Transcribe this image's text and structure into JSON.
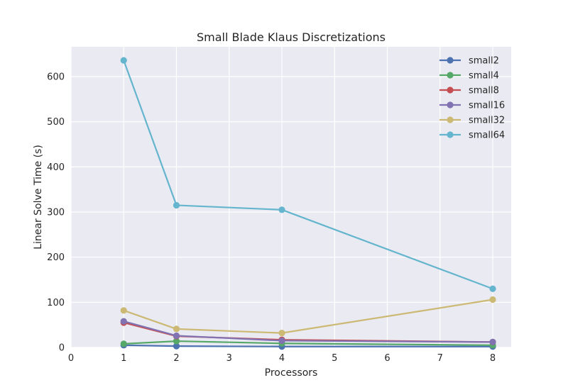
{
  "chart_data": {
    "type": "line",
    "title": "Small Blade Klaus Discretizations",
    "xlabel": "Processors",
    "ylabel": "Linear Solve Time (s)",
    "xlim": [
      0,
      8.35
    ],
    "ylim": [
      0,
      666
    ],
    "xticks": [
      0,
      1,
      2,
      3,
      4,
      5,
      6,
      7,
      8
    ],
    "yticks": [
      0,
      100,
      200,
      300,
      400,
      500,
      600
    ],
    "grid": true,
    "legend_position": "top-right",
    "x": [
      1,
      2,
      4,
      8
    ],
    "series": [
      {
        "name": "small2",
        "color": "#4c72b0",
        "values": [
          5,
          3,
          2,
          2
        ]
      },
      {
        "name": "small4",
        "color": "#55a868",
        "values": [
          8,
          14,
          9,
          5
        ]
      },
      {
        "name": "small8",
        "color": "#c44e52",
        "values": [
          55,
          25,
          17,
          12
        ]
      },
      {
        "name": "small16",
        "color": "#8172b2",
        "values": [
          58,
          26,
          15,
          12
        ]
      },
      {
        "name": "small32",
        "color": "#ccb974",
        "values": [
          82,
          41,
          32,
          106
        ]
      },
      {
        "name": "small64",
        "color": "#64b5cd",
        "values": [
          636,
          315,
          305,
          130
        ]
      }
    ],
    "background": "#eaeaf2",
    "grid_color": "#ffffff"
  }
}
